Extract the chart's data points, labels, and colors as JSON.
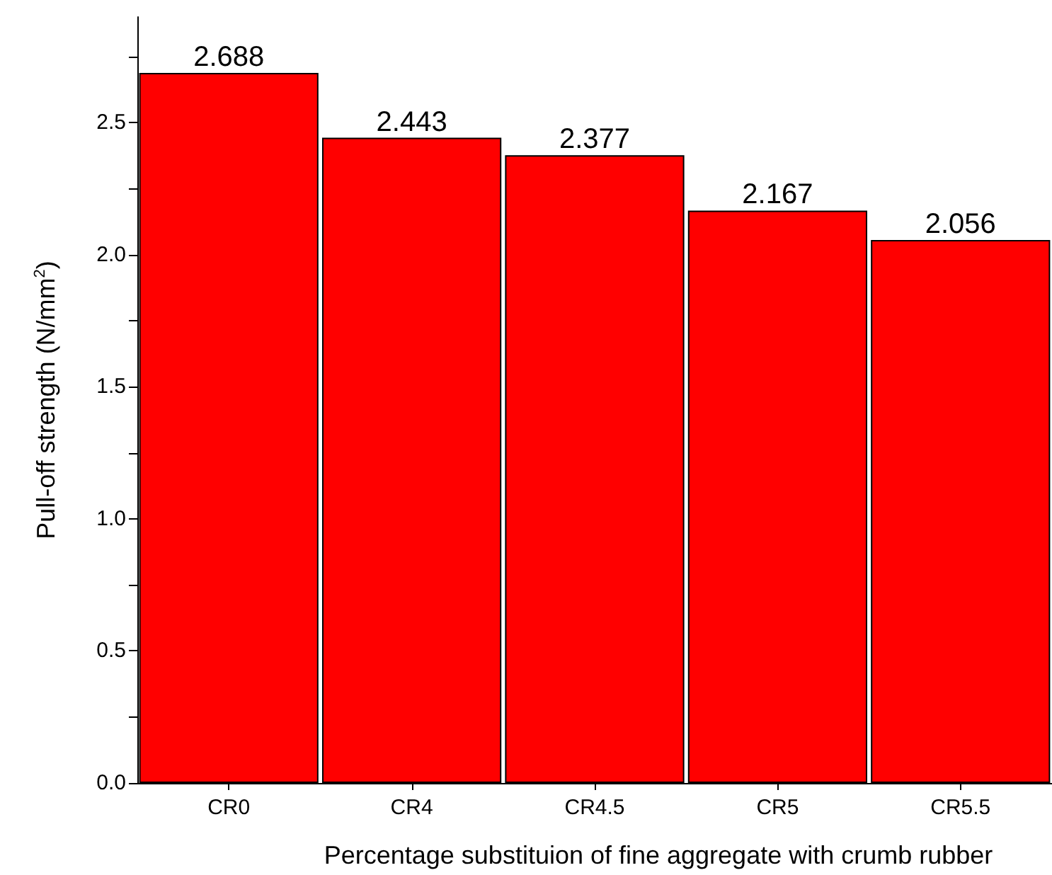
{
  "chart_data": {
    "type": "bar",
    "xlabel": "Percentage substituion of fine aggregate with crumb rubber",
    "ylabel": "Pull-off strength (N/mm$^{2}$)",
    "categories": [
      "CR0",
      "CR4",
      "CR4.5",
      "CR5",
      "CR5.5"
    ],
    "values": [
      2.688,
      2.443,
      2.377,
      2.167,
      2.056
    ],
    "color": "#ff0000",
    "data_labels": true,
    "ylim": [
      0,
      2.9
    ],
    "yticks": [
      {
        "value": 0,
        "label": "0.0"
      },
      {
        "value": 0.25,
        "label": null
      },
      {
        "value": 0.5,
        "label": "0.5"
      },
      {
        "value": 0.75,
        "label": null
      },
      {
        "value": 1,
        "label": "1.0"
      },
      {
        "value": 1.25,
        "label": null
      },
      {
        "value": 1.5,
        "label": "1.5"
      },
      {
        "value": 1.75,
        "label": null
      },
      {
        "value": 2,
        "label": "2.0"
      },
      {
        "value": 2.25,
        "label": null
      },
      {
        "value": 2.5,
        "label": "2.5"
      },
      {
        "value": 2.75,
        "label": null
      }
    ],
    "grid": false
  }
}
